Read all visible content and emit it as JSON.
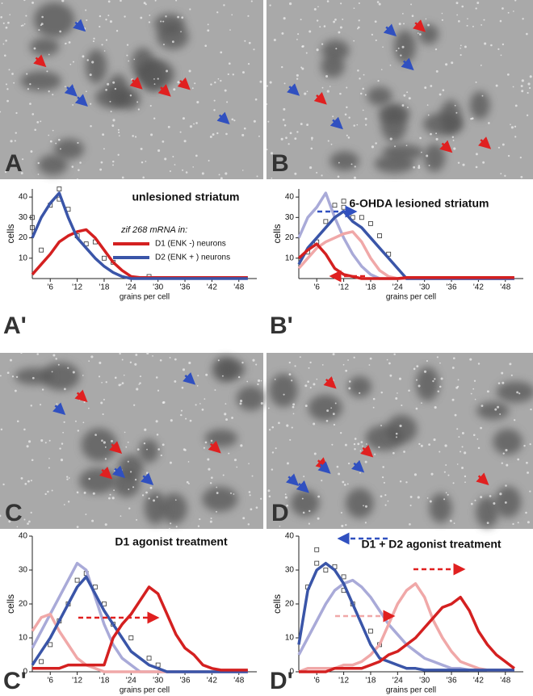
{
  "images": [
    {
      "label": "A"
    },
    {
      "label": "B"
    },
    {
      "label": "C"
    },
    {
      "label": "D"
    }
  ],
  "chart_data": [
    {
      "type": "line",
      "title": "unlesioned striatum",
      "panel": "A'",
      "x_label": "grains per cell",
      "y_label": "cells",
      "legend_title": "zif 268 mRNA in:",
      "xlim": [
        2,
        52
      ],
      "ylim": [
        0,
        44
      ],
      "xticks": [
        {
          "value": 6,
          "label": "'6"
        },
        {
          "value": 12,
          "label": "'12"
        },
        {
          "value": 18,
          "label": "'18"
        },
        {
          "value": 24,
          "label": "'24"
        },
        {
          "value": 30,
          "label": "'30"
        },
        {
          "value": 36,
          "label": "'36"
        },
        {
          "value": 42,
          "label": "'42"
        },
        {
          "value": 48,
          "label": "'48"
        }
      ],
      "yticks": [
        10,
        20,
        30,
        40
      ],
      "x": [
        2,
        4,
        6,
        8,
        10,
        12,
        14,
        16,
        18,
        20,
        22,
        24,
        26,
        28,
        30,
        32,
        34,
        36,
        38,
        40,
        42,
        44,
        46,
        48,
        50
      ],
      "series": [
        {
          "name": "D1 (ENK -) neurons",
          "color": "#d42020",
          "values": [
            2,
            7,
            12,
            18,
            21,
            23,
            24,
            20,
            14,
            8,
            4,
            1,
            0.5,
            0.5,
            0.5,
            0.5,
            0.5,
            0.5,
            0.5,
            0.5,
            0.5,
            0.5,
            0.5,
            0.5,
            0.5
          ]
        },
        {
          "name": "D2 (ENK + ) neurons",
          "color": "#3a55a8",
          "values": [
            20,
            30,
            37,
            42,
            30,
            20,
            15,
            10,
            6,
            3,
            1,
            0,
            0,
            0,
            0,
            0,
            0,
            0,
            0,
            0,
            0,
            0,
            0,
            0,
            0
          ]
        }
      ],
      "points": {
        "x": [
          2,
          2,
          4,
          6,
          8,
          8,
          10,
          12,
          14,
          16,
          18,
          20,
          28
        ],
        "y": [
          30,
          25,
          14,
          36,
          44,
          39,
          34,
          21,
          17,
          18,
          10,
          8,
          1
        ]
      }
    },
    {
      "type": "line",
      "title": "6-OHDA lesioned striatum",
      "panel": "B'",
      "x_label": "grains per cell",
      "y_label": "cells",
      "xlim": [
        2,
        52
      ],
      "ylim": [
        0,
        44
      ],
      "xticks": [
        {
          "value": 6,
          "label": "'6"
        },
        {
          "value": 12,
          "label": "'12"
        },
        {
          "value": 18,
          "label": "'18"
        },
        {
          "value": 24,
          "label": "'24"
        },
        {
          "value": 30,
          "label": "'30"
        },
        {
          "value": 36,
          "label": "'36"
        },
        {
          "value": 42,
          "label": "'42"
        },
        {
          "value": 48,
          "label": "'48"
        }
      ],
      "yticks": [
        10,
        20,
        30,
        40
      ],
      "x": [
        2,
        4,
        6,
        8,
        10,
        12,
        14,
        16,
        18,
        20,
        22,
        24,
        26,
        28,
        30,
        32,
        34,
        36,
        38,
        40,
        42,
        44,
        46,
        48,
        50
      ],
      "series": [
        {
          "color": "#a9aad8",
          "values": [
            20,
            30,
            35,
            42,
            30,
            20,
            12,
            6,
            2,
            0,
            0,
            0,
            0,
            0,
            0,
            0,
            0,
            0,
            0,
            0,
            0,
            0,
            0,
            0,
            0
          ]
        },
        {
          "color": "#f0a8a8",
          "values": [
            5,
            10,
            15,
            18,
            20,
            22,
            23,
            18,
            10,
            4,
            1,
            0,
            0,
            0,
            0,
            0,
            0,
            0,
            0,
            0,
            0,
            0,
            0,
            0,
            0
          ]
        },
        {
          "color": "#3a55a8",
          "values": [
            7,
            15,
            20,
            25,
            30,
            33,
            28,
            25,
            20,
            15,
            10,
            5,
            0,
            0,
            0,
            0,
            0,
            0,
            0,
            0,
            0,
            0,
            0,
            0,
            0
          ]
        },
        {
          "color": "#d42020",
          "values": [
            10,
            14,
            17,
            12,
            5,
            2,
            1,
            0,
            0,
            0,
            0,
            0,
            0.5,
            0.5,
            0.5,
            0.5,
            0.5,
            0.5,
            0.5,
            0.5,
            0.5,
            0.5,
            0.5,
            0.5,
            0.5
          ]
        }
      ],
      "points": {
        "x": [
          4,
          6,
          8,
          10,
          12,
          12,
          14,
          16,
          18,
          20,
          22
        ],
        "y": [
          13,
          18,
          28,
          36,
          38,
          35,
          30,
          30,
          27,
          21,
          12
        ]
      }
    },
    {
      "type": "line",
      "title": "D1 agonist treatment",
      "panel": "C'",
      "x_label": "grains per cell",
      "y_label": "cells",
      "xlim": [
        2,
        52
      ],
      "ylim": [
        0,
        40
      ],
      "xticks": [
        {
          "value": 6,
          "label": "'6"
        },
        {
          "value": 12,
          "label": "'12"
        },
        {
          "value": 18,
          "label": "'18"
        },
        {
          "value": 24,
          "label": "'24"
        },
        {
          "value": 30,
          "label": "'30"
        },
        {
          "value": 36,
          "label": "'36"
        },
        {
          "value": 42,
          "label": "'42"
        },
        {
          "value": 48,
          "label": "'48"
        }
      ],
      "yticks": [
        0,
        10,
        20,
        30,
        40
      ],
      "x": [
        2,
        4,
        6,
        8,
        10,
        12,
        14,
        16,
        18,
        20,
        22,
        24,
        26,
        28,
        30,
        32,
        34,
        36,
        38,
        40,
        42,
        44,
        46,
        48,
        50
      ],
      "series": [
        {
          "color": "#a9aad8",
          "values": [
            7,
            12,
            17,
            22,
            27,
            32,
            30,
            22,
            14,
            8,
            4,
            2,
            0,
            0,
            0,
            0,
            0,
            0,
            0,
            0,
            0,
            0,
            0,
            0,
            0
          ]
        },
        {
          "color": "#f0a8a8",
          "values": [
            12,
            16,
            17,
            12,
            8,
            4,
            2,
            1,
            0,
            0,
            0,
            0,
            0,
            0,
            0,
            0,
            0,
            0,
            0,
            0,
            0,
            0,
            0,
            0,
            0
          ]
        },
        {
          "color": "#3a55a8",
          "values": [
            2,
            6,
            10,
            15,
            20,
            25,
            28,
            23,
            18,
            14,
            10,
            6,
            4,
            2,
            1,
            0,
            0,
            0,
            0,
            0,
            0,
            0,
            0,
            0,
            0
          ]
        },
        {
          "color": "#d42020",
          "values": [
            1,
            1,
            1,
            1,
            2,
            2,
            2,
            2,
            2,
            10,
            14,
            17,
            21,
            25,
            23,
            17,
            11,
            7,
            5,
            2,
            1,
            0.5,
            0.5,
            0.5,
            0.5
          ]
        }
      ],
      "points": {
        "x": [
          4,
          6,
          8,
          10,
          12,
          14,
          16,
          18,
          20,
          24,
          28,
          30
        ],
        "y": [
          3,
          8,
          15,
          20,
          27,
          29,
          25,
          20,
          14,
          10,
          4,
          2
        ]
      }
    },
    {
      "type": "line",
      "title": "D1 + D2 agonist treatment",
      "panel": "D'",
      "x_label": "grains per cell",
      "y_label": "cells",
      "xlim": [
        2,
        52
      ],
      "ylim": [
        0,
        40
      ],
      "xticks": [
        {
          "value": 6,
          "label": "'6"
        },
        {
          "value": 12,
          "label": "'12"
        },
        {
          "value": 18,
          "label": "'18"
        },
        {
          "value": 24,
          "label": "'24"
        },
        {
          "value": 30,
          "label": "'30"
        },
        {
          "value": 36,
          "label": "'36"
        },
        {
          "value": 42,
          "label": "'42"
        },
        {
          "value": 48,
          "label": "'48"
        }
      ],
      "yticks": [
        0,
        10,
        20,
        30,
        40
      ],
      "x": [
        2,
        4,
        6,
        8,
        10,
        12,
        14,
        16,
        18,
        20,
        22,
        24,
        26,
        28,
        30,
        32,
        34,
        36,
        38,
        40,
        42,
        44,
        46,
        48,
        50
      ],
      "series": [
        {
          "color": "#a9aad8",
          "values": [
            5,
            10,
            15,
            20,
            24,
            26,
            27,
            25,
            22,
            18,
            14,
            11,
            8,
            6,
            4,
            3,
            2,
            1,
            1,
            0.5,
            0.5,
            0.5,
            0.5,
            0.5,
            0.5
          ]
        },
        {
          "color": "#f0a8a8",
          "values": [
            0,
            1,
            1,
            1,
            1,
            2,
            2,
            3,
            5,
            8,
            14,
            20,
            24,
            26,
            22,
            15,
            10,
            6,
            3,
            2,
            1,
            0.5,
            0.5,
            0.5,
            0.5
          ]
        },
        {
          "color": "#3a55a8",
          "values": [
            8,
            24,
            30,
            32,
            30,
            26,
            20,
            14,
            8,
            4,
            3,
            2,
            1,
            1,
            0.5,
            0.5,
            0.5,
            0.5,
            0.5,
            0.5,
            0.5,
            0.5,
            0.5,
            0.5,
            0.5
          ]
        },
        {
          "color": "#d42020",
          "values": [
            0,
            0,
            0,
            0,
            1,
            1,
            1,
            1,
            2,
            3,
            5,
            6,
            8,
            10,
            13,
            16,
            19,
            20,
            22,
            18,
            12,
            8,
            5,
            3,
            1
          ]
        }
      ],
      "points": {
        "x": [
          4,
          6,
          6,
          8,
          10,
          12,
          12,
          14,
          18,
          20
        ],
        "y": [
          25,
          32,
          36,
          30,
          31,
          28,
          24,
          20,
          12,
          8
        ]
      }
    }
  ]
}
